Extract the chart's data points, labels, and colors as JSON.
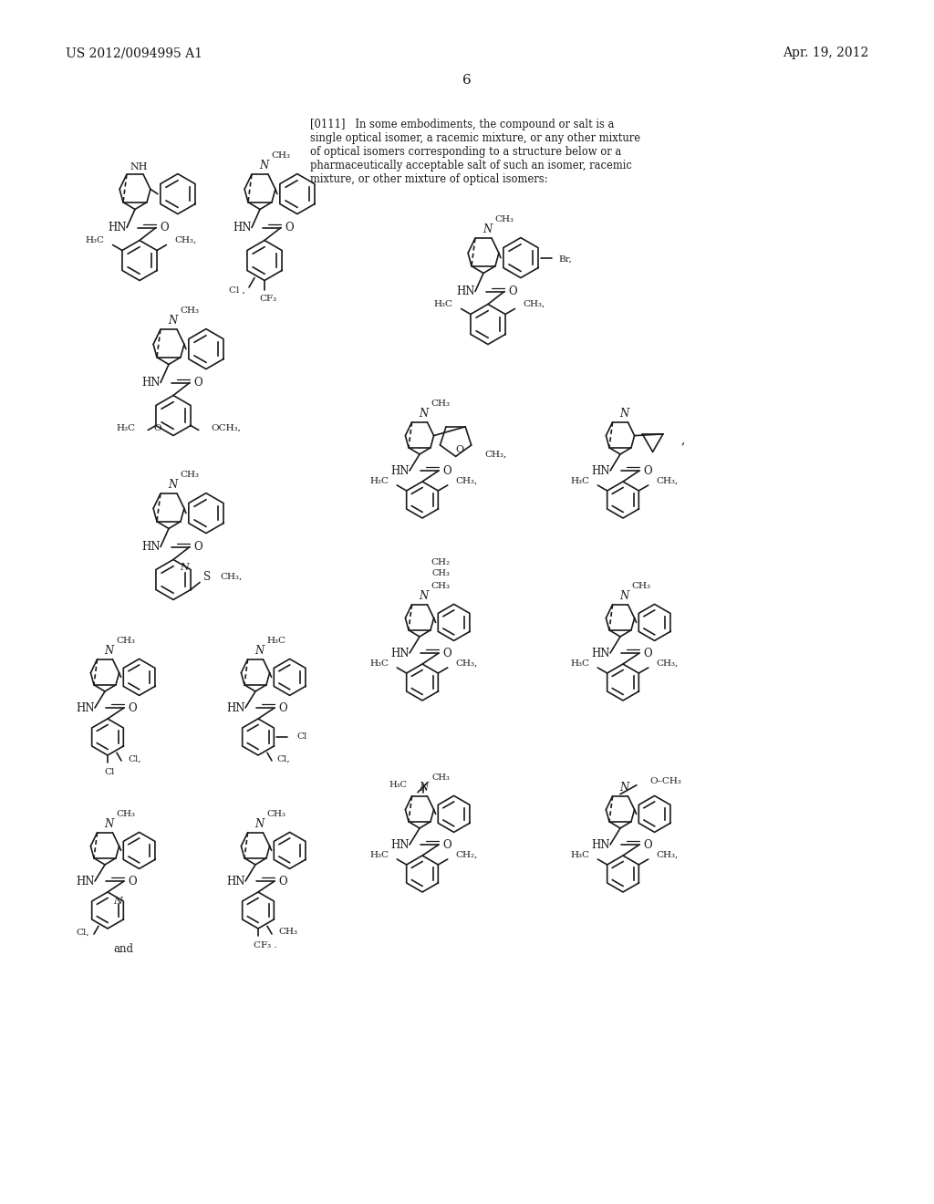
{
  "bg": "#ffffff",
  "fc": "#1a1a1a",
  "header_left": "US 2012/0094995 A1",
  "header_right": "Apr. 19, 2012",
  "page_num": "6",
  "para": "[0111]   In some embodiments, the compound or salt is a\nsingle optical isomer, a racemic mixture, or any other mixture\nof optical isomers corresponding to a structure below or a\npharmaceutically acceptable salt of such an isomer, racemic\nmixture, or other mixture of optical isomers:"
}
